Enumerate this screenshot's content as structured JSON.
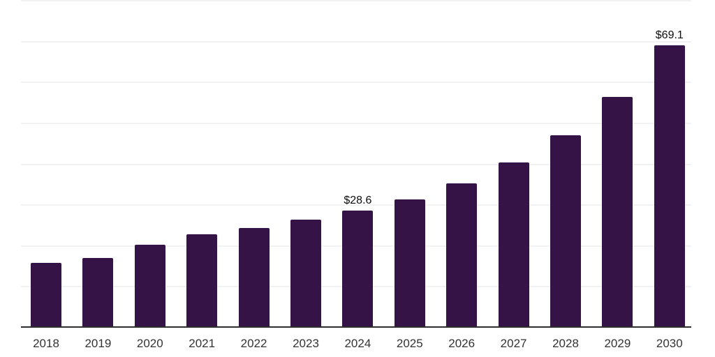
{
  "chart": {
    "background_color": "#ffffff",
    "bar_color": "#351347",
    "gridline_color": "#f2f2f3",
    "axis_line_color": "#2e2e2e",
    "tick_label_color": "#333333",
    "value_label_color": "#0d0d0d"
  },
  "chart_data": {
    "type": "bar",
    "title": "",
    "xlabel": "",
    "ylabel": "",
    "categories": [
      "2018",
      "2019",
      "2020",
      "2021",
      "2022",
      "2023",
      "2024",
      "2025",
      "2026",
      "2027",
      "2028",
      "2029",
      "2030"
    ],
    "values": [
      15.9,
      17.1,
      20.3,
      22.9,
      24.4,
      26.4,
      28.6,
      31.4,
      35.3,
      40.4,
      47.1,
      56.5,
      69.1
    ],
    "data_labels": [
      "",
      "",
      "",
      "",
      "",
      "",
      "$28.6",
      "",
      "",
      "",
      "",
      "",
      "$69.1"
    ],
    "ylim": [
      0,
      80
    ],
    "gridline_step": 10,
    "grid": "horizontal",
    "legend": "none",
    "y_axis_tick_labels_shown": false
  }
}
